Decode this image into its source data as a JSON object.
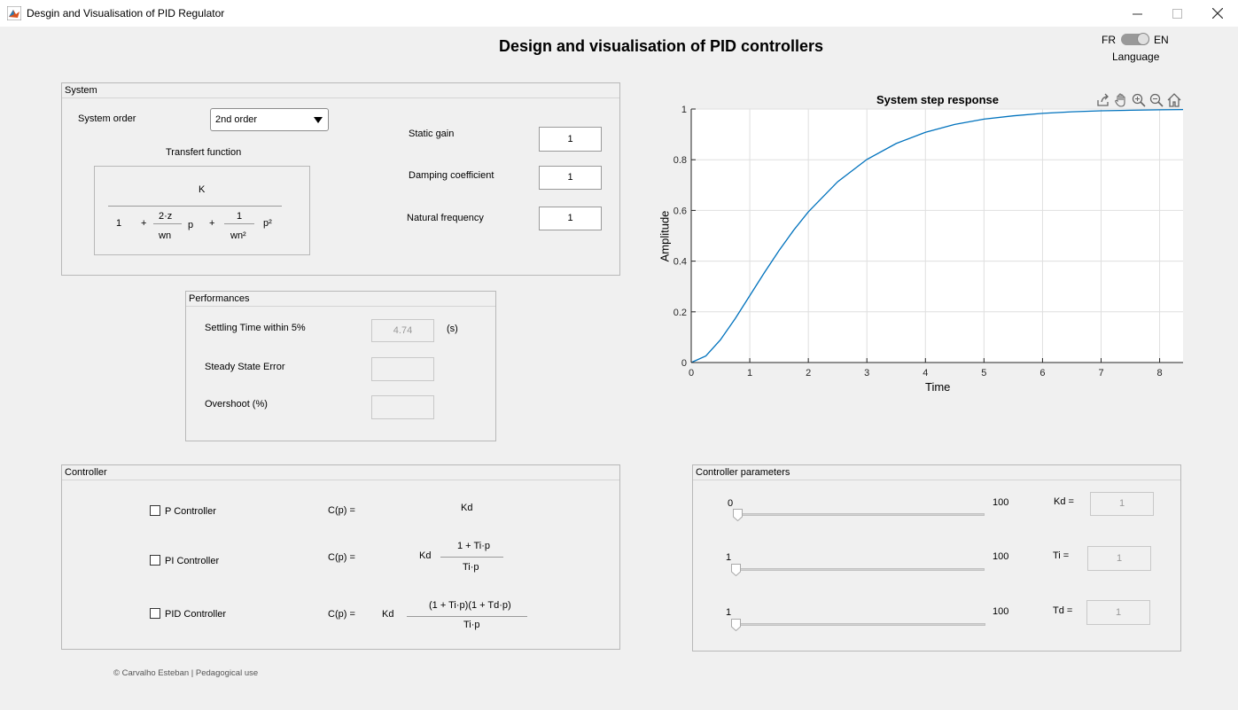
{
  "window": {
    "title": "Desgin and Visualisation of PID Regulator"
  },
  "header": {
    "title": "Design and visualisation of PID controllers"
  },
  "language": {
    "fr": "FR",
    "en": "EN",
    "label": "Language"
  },
  "system": {
    "panel_title": "System",
    "order_label": "System order",
    "order_value": "2nd order",
    "tf_label": "Transfert function",
    "tf": {
      "num": "K",
      "one": "1",
      "plus": "+",
      "frac1_num": "2·z",
      "frac1_den": "wn",
      "p": "p",
      "frac2_num": "1",
      "frac2_den": "wn²",
      "p2": "p²"
    },
    "static_gain_label": "Static gain",
    "static_gain_value": "1",
    "damping_label": "Damping coefficient",
    "damping_value": "1",
    "natfreq_label": "Natural frequency",
    "natfreq_value": "1"
  },
  "performances": {
    "panel_title": "Performances",
    "settling_label": "Settling Time within 5%",
    "settling_value": "4.74",
    "settling_unit": "(s)",
    "sse_label": "Steady State Error",
    "sse_value": "",
    "overshoot_label": "Overshoot (%)",
    "overshoot_value": ""
  },
  "controller": {
    "panel_title": "Controller",
    "p_label": "P Controller",
    "pi_label": "PI Controller",
    "pid_label": "PID Controller",
    "cp": "C(p) =",
    "p_formula": "Kd",
    "pi_gain": "Kd",
    "pi_num": "1 + Ti·p",
    "pi_den": "Ti·p",
    "pid_gain": "Kd",
    "pid_num": "(1 + Ti·p)(1 + Td·p)",
    "pid_den": "Ti·p"
  },
  "params": {
    "panel_title": "Controller parameters",
    "kd": {
      "min": "0",
      "max": "100",
      "label": "Kd =",
      "value": "1",
      "level": 0
    },
    "ti": {
      "min": "1",
      "max": "100",
      "label": "Ti =",
      "value": "1",
      "level": 0
    },
    "td": {
      "min": "1",
      "max": "100",
      "label": "Td =",
      "value": "1",
      "level": 0
    }
  },
  "footer": {
    "credit": "© Carvalho Esteban | Pedagogical use"
  },
  "colors": {
    "line": "#0072bd",
    "grid": "#dfdfdf"
  },
  "icons": [
    "export-icon",
    "pan-icon",
    "zoom-in-icon",
    "zoom-out-icon",
    "home-icon"
  ],
  "chart_data": {
    "type": "line",
    "title": "System step response",
    "xlabel": "Time",
    "ylabel": "Amplitude",
    "xlim": [
      0,
      8.4
    ],
    "ylim": [
      0,
      1
    ],
    "xticks": [
      "0",
      "1",
      "2",
      "3",
      "4",
      "5",
      "6",
      "7",
      "8"
    ],
    "yticks": [
      "0",
      "0.2",
      "0.4",
      "0.6",
      "0.8",
      "1"
    ],
    "grid": true,
    "series": [
      {
        "x": [
          0,
          0.25,
          0.5,
          0.75,
          1,
          1.25,
          1.5,
          1.75,
          2,
          2.5,
          3,
          3.5,
          4,
          4.5,
          5,
          5.5,
          6,
          6.5,
          7,
          7.5,
          8,
          8.4
        ],
        "y": [
          0,
          0.026,
          0.09,
          0.173,
          0.264,
          0.355,
          0.442,
          0.522,
          0.594,
          0.713,
          0.801,
          0.864,
          0.908,
          0.939,
          0.96,
          0.973,
          0.983,
          0.989,
          0.993,
          0.995,
          0.997,
          0.998
        ]
      }
    ]
  }
}
